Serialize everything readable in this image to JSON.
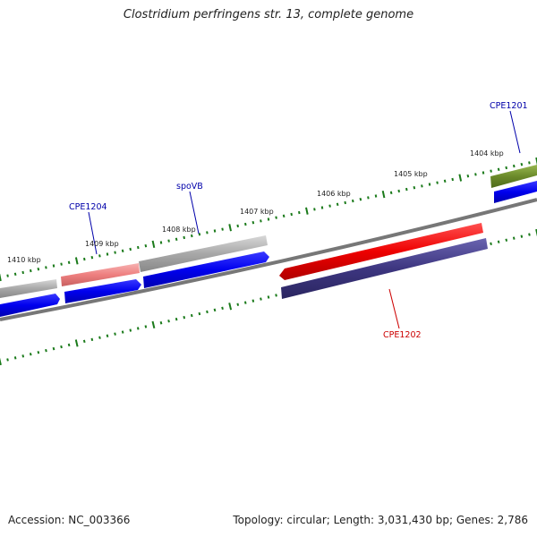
{
  "title": "Clostridium perfringens str. 13, complete genome",
  "footer": {
    "accession": "Accession: NC_003366",
    "stats": "Topology: circular; Length: 3,031,430 bp; Genes: 2,786"
  },
  "ticks": [
    "1404 kbp",
    "1405 kbp",
    "1406 kbp",
    "1407 kbp",
    "1408 kbp",
    "1409 kbp",
    "1410 kbp"
  ],
  "labels": {
    "cpe1201": "CPE1201",
    "cpe1202": "CPE1202",
    "cpe1204": "CPE1204",
    "spovb": "spoVB"
  },
  "colors": {
    "tick": "#1a7a1a",
    "backbone": "#777777",
    "gene_blue": "#0000ee",
    "gene_grey": "#a8a8a8",
    "gene_pink": "#ee7f7f",
    "gene_red": "#ee0000",
    "gene_navy": "#3d3680",
    "gene_olive": "#6b8a2a",
    "label_blue": "#0000aa",
    "label_red": "#cc0000"
  }
}
